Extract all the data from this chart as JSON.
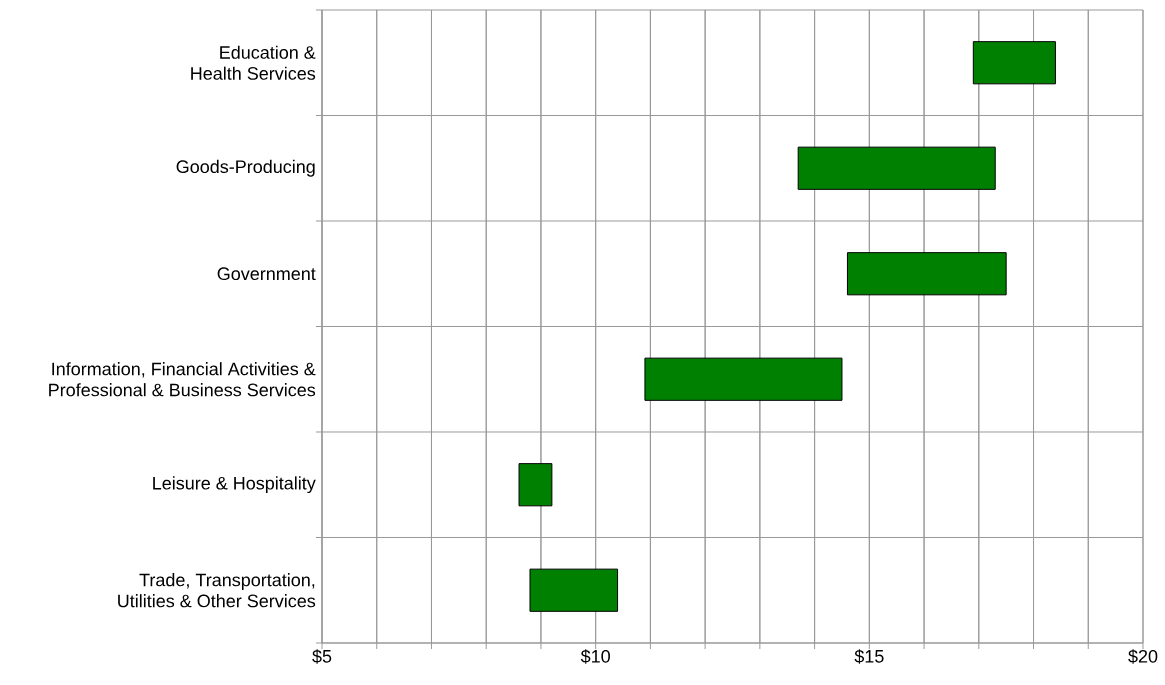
{
  "chart_data": {
    "type": "bar",
    "orientation": "horizontal",
    "categories": [
      "Education &\nHealth Services",
      "Goods-Producing",
      "Government",
      "Information, Financial Activities &\nProfessional & Business Services",
      "Leisure & Hospitality",
      "Trade, Transportation,\nUtilities & Other Services"
    ],
    "base": [
      16.9,
      13.7,
      14.6,
      10.9,
      8.6,
      8.8
    ],
    "values": [
      1.5,
      3.6,
      2.9,
      3.6,
      0.6,
      1.6
    ],
    "color": "#008000",
    "xlim": [
      5,
      20
    ],
    "xticks": [
      {
        "value": 5,
        "label": "$5"
      },
      {
        "value": 6,
        "label": null
      },
      {
        "value": 7,
        "label": null
      },
      {
        "value": 8,
        "label": null
      },
      {
        "value": 9,
        "label": null
      },
      {
        "value": 10,
        "label": "$10"
      },
      {
        "value": 11,
        "label": null
      },
      {
        "value": 12,
        "label": null
      },
      {
        "value": 13,
        "label": null
      },
      {
        "value": 14,
        "label": null
      },
      {
        "value": 15,
        "label": "$15"
      },
      {
        "value": 16,
        "label": null
      },
      {
        "value": 17,
        "label": null
      },
      {
        "value": 18,
        "label": null
      },
      {
        "value": 19,
        "label": null
      },
      {
        "value": 20,
        "label": "$20"
      }
    ],
    "grid": true
  }
}
